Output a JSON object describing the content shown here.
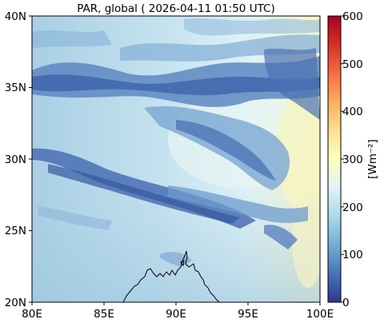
{
  "title": "PAR, global ( 2026-04-11 01:50 UTC)",
  "map": {
    "lon_ticks": [
      "80E",
      "85E",
      "90E",
      "95E",
      "100E"
    ],
    "lat_ticks": [
      "40N",
      "35N",
      "30N",
      "25N",
      "20N"
    ],
    "lon_range": [
      80,
      100
    ],
    "lat_range": [
      20,
      40
    ],
    "coastline_color": "#000000"
  },
  "colorbar": {
    "label": "[Wm⁻²]",
    "ticks": [
      "600",
      "500",
      "400",
      "300",
      "200",
      "100",
      "0"
    ],
    "range": [
      0,
      600
    ],
    "colormap": "RdYlBu_r",
    "colors": [
      "#313695",
      "#4575b4",
      "#74add1",
      "#abd9e9",
      "#e0f3f8",
      "#ffffbf",
      "#fee090",
      "#fdae61",
      "#f46d43",
      "#d73027",
      "#a50026"
    ]
  }
}
